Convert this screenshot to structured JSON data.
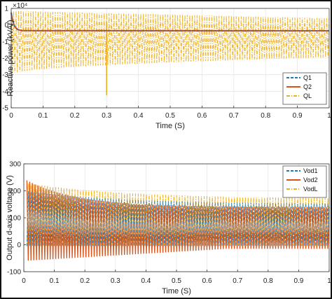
{
  "chart_data": [
    {
      "type": "line",
      "xlabel": "Time (S)",
      "ylabel": "Reactive power (kVAr)",
      "exponent_label": "×10⁴",
      "xlim": [
        0,
        1
      ],
      "ylim": [
        -5,
        1
      ],
      "x_ticks": [
        "0",
        "0.1",
        "0.2",
        "0.3",
        "0.4",
        "0.5",
        "0.6",
        "0.7",
        "0.8",
        "0.9",
        "1"
      ],
      "y_ticks": [
        "1",
        "0",
        "-1",
        "-2",
        "-3",
        "-4",
        "-5"
      ],
      "legend_position": "bottom-right",
      "series": [
        {
          "name": "Q1",
          "color": "#1f77b4",
          "style": "dashed",
          "approx_mean": -0.35,
          "start": 0.75,
          "settle_time": 0.04
        },
        {
          "name": "Q2",
          "color": "#d95319",
          "style": "solid",
          "approx_mean": -0.35,
          "start": 0.75,
          "settle_time": 0.04
        },
        {
          "name": "QL",
          "color": "#edb120",
          "style": "dash-dot",
          "oscillation_low_start": -3.0,
          "oscillation_low_end": -1.95,
          "oscillation_high_start": 0.85,
          "oscillation_high_end": 0.4,
          "spike_at": 0.3,
          "spike_value": -4.25
        }
      ]
    },
    {
      "type": "line",
      "xlabel": "Time (S)",
      "ylabel": "Output d-axis voltage (V)",
      "xlim": [
        0,
        1
      ],
      "ylim": [
        -100,
        300
      ],
      "x_ticks": [
        "0",
        "0.1",
        "0.2",
        "0.3",
        "0.4",
        "0.5",
        "0.6",
        "0.7",
        "0.8",
        "0.9",
        "1"
      ],
      "y_ticks": [
        "300",
        "200",
        "100",
        "0",
        "-100"
      ],
      "legend_position": "top-right",
      "series": [
        {
          "name": "Vod1",
          "color": "#1f77b4",
          "style": "dashed",
          "oscillation_low": -5,
          "oscillation_high_start": 200,
          "oscillation_high_end": 150
        },
        {
          "name": "Vod2",
          "color": "#d95319",
          "style": "solid",
          "oscillation_low_start": -60,
          "oscillation_low_end": -15,
          "oscillation_high_start": 245,
          "oscillation_high_end": 140
        },
        {
          "name": "VodL",
          "color": "#edb120",
          "style": "dash-dot",
          "oscillation_low": -5,
          "oscillation_high_start": 230,
          "oscillation_high_end": 170
        }
      ]
    }
  ]
}
